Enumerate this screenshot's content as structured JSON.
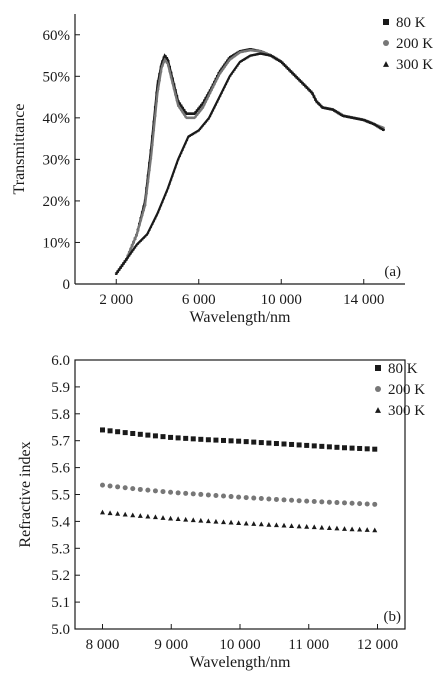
{
  "chart_data": [
    {
      "type": "line",
      "panel_label": "(a)",
      "xlabel": "Wavelength/nm",
      "ylabel": "Transmittance",
      "xlim": [
        0,
        16000
      ],
      "ylim": [
        0,
        65
      ],
      "x_ticks": [
        2000,
        6000,
        10000,
        14000
      ],
      "x_tick_labels": [
        "2 000",
        "6 000",
        "10 000",
        "14 000"
      ],
      "y_ticks": [
        0,
        10,
        20,
        30,
        40,
        50,
        60
      ],
      "y_tick_labels": [
        "0",
        "10%",
        "20%",
        "30%",
        "40%",
        "50%",
        "60%"
      ],
      "grid": false,
      "legend_position": "top-right",
      "series": [
        {
          "name": "80 K",
          "marker": "square",
          "x": [
            2000,
            2500,
            3000,
            3400,
            3700,
            4000,
            4200,
            4350,
            4500,
            4700,
            5000,
            5400,
            5800,
            6200,
            6600,
            7000,
            7500,
            8000,
            8500,
            9000,
            9500,
            10000,
            10500,
            11000,
            11500,
            11700,
            12000,
            12500,
            13000,
            13500,
            14000,
            14500,
            15000
          ],
          "y": [
            2.5,
            6,
            12,
            20,
            33,
            48,
            53,
            55,
            54,
            50,
            44,
            41,
            41,
            43.5,
            47,
            51,
            54.5,
            56,
            56.5,
            56,
            55,
            53.5,
            51,
            48.5,
            46,
            44,
            42.5,
            42,
            40.5,
            40,
            39.5,
            38.5,
            37
          ]
        },
        {
          "name": "200 K",
          "marker": "circle",
          "x": [
            2000,
            2500,
            3000,
            3400,
            3700,
            4000,
            4200,
            4350,
            4500,
            4700,
            5000,
            5400,
            5800,
            6200,
            6600,
            7000,
            7500,
            8000,
            8500,
            9000,
            9500,
            10000,
            10500,
            11000,
            11500,
            11700,
            12000,
            12500,
            13000,
            13500,
            14000,
            14500,
            15000
          ],
          "y": [
            2.5,
            6,
            12,
            19,
            31,
            46,
            52,
            54,
            53,
            49,
            43,
            40,
            40,
            42.5,
            46.5,
            50.5,
            54,
            55.8,
            56.3,
            56,
            55,
            53.5,
            51,
            48.5,
            46,
            44,
            42.5,
            42,
            40.5,
            40,
            39.5,
            38.5,
            37.5
          ]
        },
        {
          "name": "300 K",
          "marker": "triangle",
          "x": [
            2000,
            2500,
            3000,
            3500,
            4000,
            4500,
            5000,
            5500,
            6000,
            6500,
            7000,
            7500,
            8000,
            8500,
            9000,
            9500,
            10000,
            10500,
            11000,
            11500,
            11700,
            12000,
            12500,
            13000,
            13500,
            14000,
            14500,
            15000
          ],
          "y": [
            2.5,
            6,
            9.5,
            12,
            17,
            23,
            30,
            35.5,
            37,
            40,
            45,
            50,
            53.5,
            55,
            55.5,
            55,
            53.5,
            51,
            48.5,
            46,
            44,
            42.5,
            42,
            40.5,
            40,
            39.5,
            38.5,
            37
          ]
        }
      ]
    },
    {
      "type": "scatter",
      "panel_label": "(b)",
      "xlabel": "Wavelength/nm",
      "ylabel": "Refractive index",
      "xlim": [
        7600,
        12400
      ],
      "ylim": [
        5.0,
        6.0
      ],
      "x_ticks": [
        8000,
        9000,
        10000,
        11000,
        12000
      ],
      "x_tick_labels": [
        "8 000",
        "9 000",
        "10 000",
        "11 000",
        "12 000"
      ],
      "y_ticks": [
        5.0,
        5.1,
        5.2,
        5.3,
        5.4,
        5.5,
        5.6,
        5.7,
        5.8,
        5.9,
        6.0
      ],
      "y_tick_labels": [
        "5.0",
        "5.1",
        "5.2",
        "5.3",
        "5.4",
        "5.5",
        "5.6",
        "5.7",
        "5.8",
        "5.9",
        "6.0"
      ],
      "grid": false,
      "legend_position": "top-right",
      "series": [
        {
          "name": "80 K",
          "marker": "square",
          "x": [
            8000,
            8500,
            9000,
            9500,
            10000,
            10500,
            11000,
            11500,
            12000
          ],
          "y": [
            5.74,
            5.725,
            5.712,
            5.704,
            5.698,
            5.69,
            5.682,
            5.674,
            5.668
          ]
        },
        {
          "name": "200 K",
          "marker": "circle",
          "x": [
            8000,
            8500,
            9000,
            9500,
            10000,
            10500,
            11000,
            11500,
            12000
          ],
          "y": [
            5.535,
            5.52,
            5.508,
            5.499,
            5.49,
            5.482,
            5.475,
            5.469,
            5.463
          ]
        },
        {
          "name": "300 K",
          "marker": "triangle",
          "x": [
            8000,
            8500,
            9000,
            9500,
            10000,
            10500,
            11000,
            11500,
            12000
          ],
          "y": [
            5.435,
            5.423,
            5.412,
            5.403,
            5.395,
            5.388,
            5.381,
            5.374,
            5.368
          ]
        }
      ]
    }
  ]
}
